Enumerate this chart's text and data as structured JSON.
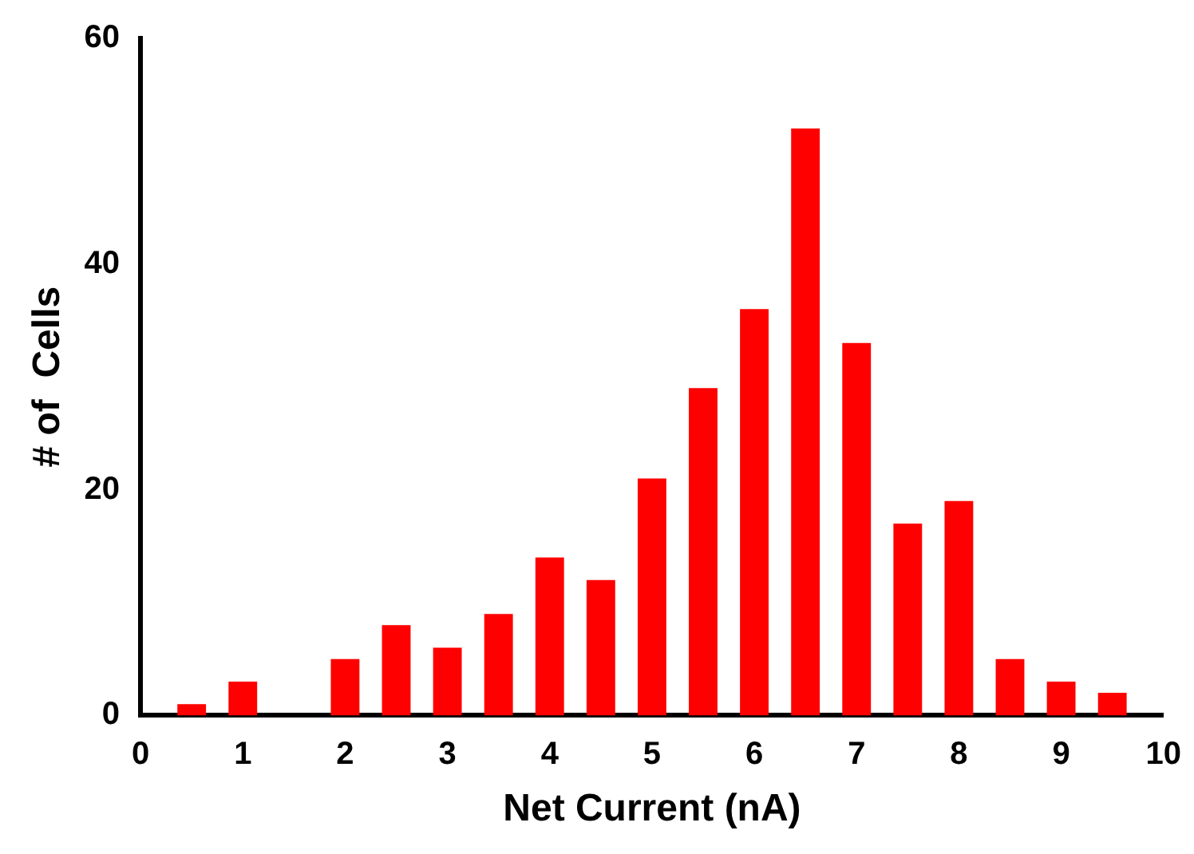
{
  "chart_data": {
    "type": "histogram",
    "xlabel": "Net Current (nA)",
    "ylabel": "# of  Cells",
    "bins": [
      0.25,
      0.75,
      1.25,
      1.75,
      2.25,
      2.75,
      3.25,
      3.75,
      4.25,
      4.75,
      5.25,
      5.75,
      6.25,
      6.75,
      7.25,
      7.75,
      8.25,
      8.75,
      9.25,
      9.75
    ],
    "values": [
      1,
      3,
      0,
      5,
      8,
      6,
      9,
      14,
      12,
      21,
      29,
      36,
      52,
      33,
      17,
      19,
      5,
      3,
      2
    ],
    "color": "#ff0000",
    "xlim": [
      0,
      10
    ],
    "xticks": [
      0,
      1,
      2,
      3,
      4,
      5,
      6,
      7,
      8,
      9,
      10
    ],
    "ylim": [
      0,
      60
    ],
    "yticks": [
      0,
      20,
      40,
      60
    ],
    "grid": false,
    "legend": false
  }
}
